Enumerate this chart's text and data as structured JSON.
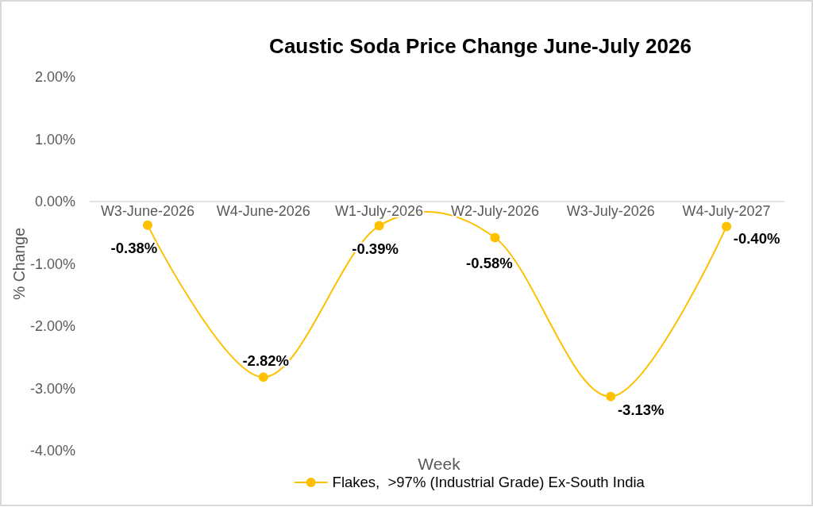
{
  "chart_data": {
    "type": "line",
    "title": "Caustic Soda Price Change June-July 2026",
    "xlabel": "Week",
    "ylabel": "% Change",
    "categories": [
      "W3-June-2026",
      "W4-June-2026",
      "W1-July-2026",
      "W2-July-2026",
      "W3-July-2026",
      "W4-July-2027"
    ],
    "series": [
      {
        "name": "Flakes,  >97% (Industrial Grade) Ex-South India",
        "color": "#ffc000",
        "values": [
          -0.38,
          -2.82,
          -0.39,
          -0.58,
          -3.13,
          -0.4
        ],
        "value_labels": [
          "-0.38%",
          "-2.82%",
          "-0.39%",
          "-0.58%",
          "-3.13%",
          "-0.40%"
        ]
      }
    ],
    "ylim": [
      -4,
      2
    ],
    "yticks": [
      {
        "value": 2,
        "label": "2.00%"
      },
      {
        "value": 1,
        "label": "1.00%"
      },
      {
        "value": 0,
        "label": "0.00%"
      },
      {
        "value": -1,
        "label": "-1.00%"
      },
      {
        "value": -2,
        "label": "-2.00%"
      },
      {
        "value": -3,
        "label": "-3.00%"
      },
      {
        "value": -4,
        "label": "-4.00%"
      }
    ],
    "legend": "bottom",
    "marker": "circle",
    "line_style": "solid"
  }
}
